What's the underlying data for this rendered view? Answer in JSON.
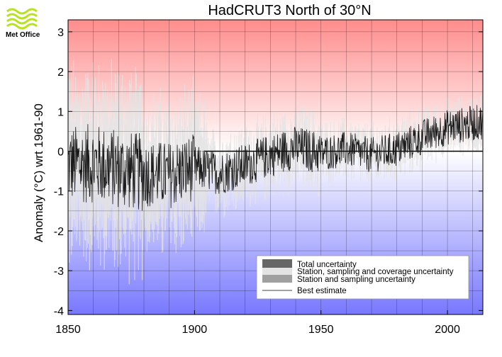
{
  "logo": {
    "text": "Met Office",
    "icon": "met-office-waves-icon"
  },
  "chart_data": {
    "type": "line",
    "title": "HadCRUT3 North of 30°N",
    "xlabel": "",
    "ylabel": "Anomaly (°C) wrt 1961-90",
    "xlim": [
      1850,
      2014
    ],
    "ylim": [
      -4.1,
      3.3
    ],
    "xticks": [
      1850,
      1900,
      1950,
      2000
    ],
    "yticks": [
      3,
      2,
      1,
      0,
      -1,
      -2,
      -3,
      -4
    ],
    "grid": true,
    "legend_position": "bottom-right",
    "background": {
      "warm_color": "#ff8c8c",
      "cold_color": "#7878ff"
    },
    "legend": [
      {
        "label": "Total uncertainty",
        "kind": "box",
        "color": "#666666"
      },
      {
        "label": "Station, sampling and coverage uncertainty",
        "kind": "box",
        "color": "#e3e3e3"
      },
      {
        "label": "Station and sampling uncertainty",
        "kind": "box",
        "color": "#a0a0a0"
      },
      {
        "label": "Best estimate",
        "kind": "line",
        "color": "#444444"
      }
    ],
    "annual_trend": {
      "x": [
        1850,
        1860,
        1870,
        1880,
        1890,
        1900,
        1910,
        1920,
        1930,
        1940,
        1950,
        1960,
        1970,
        1980,
        1990,
        2000,
        2010,
        2014
      ],
      "y": [
        -0.35,
        -0.3,
        -0.45,
        -0.55,
        -0.6,
        -0.4,
        -0.55,
        -0.35,
        -0.1,
        0.1,
        -0.05,
        0.05,
        -0.1,
        0.05,
        0.35,
        0.6,
        0.7,
        0.75
      ]
    },
    "best_estimate_monthly_range": {
      "min": -2.5,
      "max": 1.5
    },
    "uncertainty_range": {
      "min": -3.4,
      "max": 2.5
    },
    "zero_line_from": 1904
  }
}
